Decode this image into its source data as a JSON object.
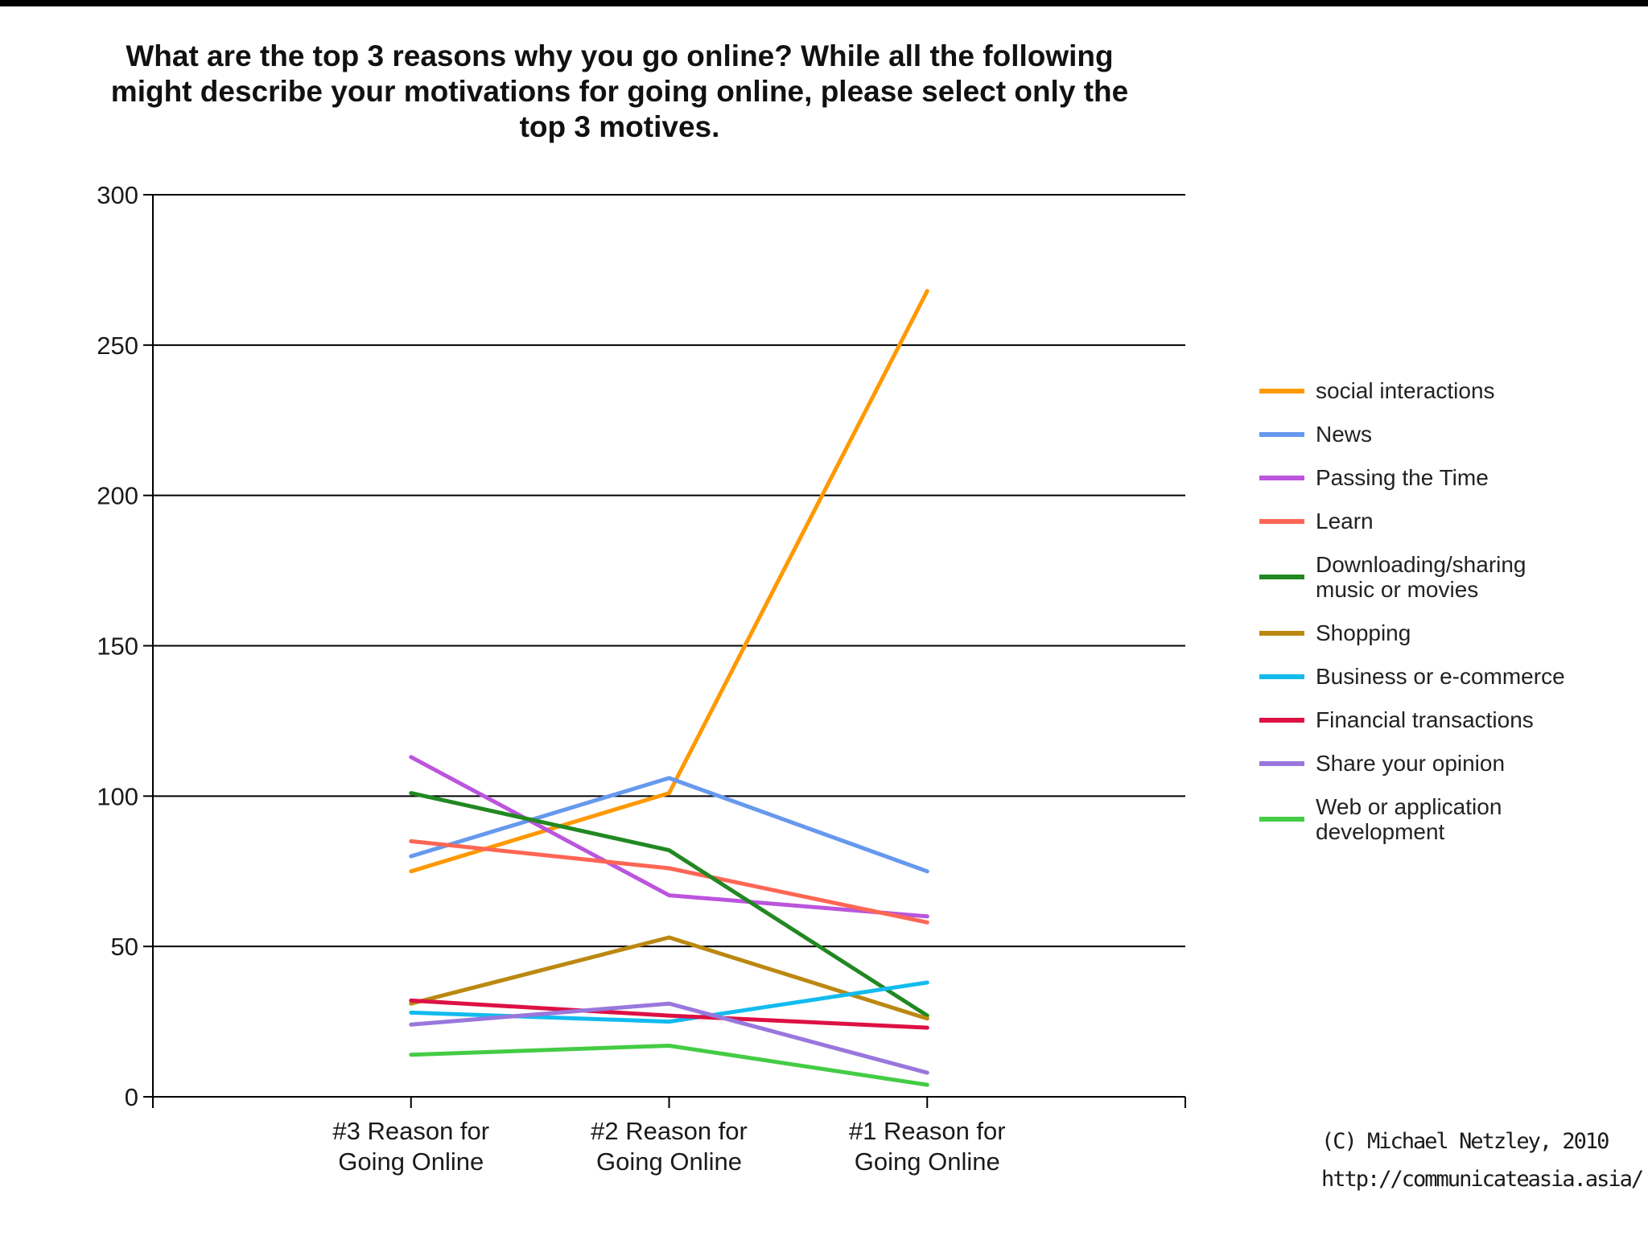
{
  "chart_data": {
    "type": "line",
    "title": "What are the top 3 reasons why you go online?  While all the following might describe your motivations for going online, please select only the top 3 motives.",
    "title_lines": [
      "What are the top 3 reasons why you go online?  While all the following",
      "might describe your motivations for going online, please select only the",
      "top 3 motives."
    ],
    "categories": [
      "#3 Reason for Going Online",
      "#2 Reason for Going Online",
      "#1 Reason for Going Online"
    ],
    "category_lines": [
      [
        "#3 Reason for",
        "Going Online"
      ],
      [
        "#2 Reason for",
        "Going Online"
      ],
      [
        "#1 Reason for",
        "Going Online"
      ]
    ],
    "ylim": [
      0,
      300
    ],
    "yticks": [
      0,
      50,
      100,
      150,
      200,
      250,
      300
    ],
    "grid": true,
    "legend_position": "right",
    "series": [
      {
        "name": "social interactions",
        "color": "#ff9900",
        "values": [
          75,
          101,
          268
        ]
      },
      {
        "name": "News",
        "color": "#6699ee",
        "values": [
          80,
          106,
          75
        ]
      },
      {
        "name": "Passing the Time",
        "color": "#bb55dd",
        "values": [
          113,
          67,
          60
        ]
      },
      {
        "name": "Learn",
        "color": "#ff6655",
        "values": [
          85,
          76,
          58
        ]
      },
      {
        "name": "Downloading/sharing music or movies",
        "color": "#228822",
        "values": [
          101,
          82,
          27
        ]
      },
      {
        "name": "Shopping",
        "color": "#bb8811",
        "values": [
          31,
          53,
          26
        ]
      },
      {
        "name": "Business or e-commerce",
        "color": "#11bbee",
        "values": [
          28,
          25,
          38
        ]
      },
      {
        "name": "Financial transactions",
        "color": "#dd1144",
        "values": [
          32,
          27,
          23
        ]
      },
      {
        "name": "Share your opinion",
        "color": "#9977dd",
        "values": [
          24,
          31,
          8
        ]
      },
      {
        "name": "Web or application development",
        "color": "#44cc44",
        "values": [
          14,
          17,
          4
        ]
      }
    ]
  },
  "legend": {
    "items": [
      {
        "lines": [
          "social interactions"
        ]
      },
      {
        "lines": [
          "News"
        ]
      },
      {
        "lines": [
          "Passing the Time"
        ]
      },
      {
        "lines": [
          "Learn"
        ]
      },
      {
        "lines": [
          "Downloading/sharing",
          "music or movies"
        ]
      },
      {
        "lines": [
          "Shopping"
        ]
      },
      {
        "lines": [
          "Business or e-commerce"
        ]
      },
      {
        "lines": [
          "Financial transactions"
        ]
      },
      {
        "lines": [
          "Share your opinion"
        ]
      },
      {
        "lines": [
          "Web or application",
          "development"
        ]
      }
    ]
  },
  "credit": {
    "line1": "(C) Michael Netzley, 2010",
    "line2": "http://communicateasia.asia/"
  }
}
